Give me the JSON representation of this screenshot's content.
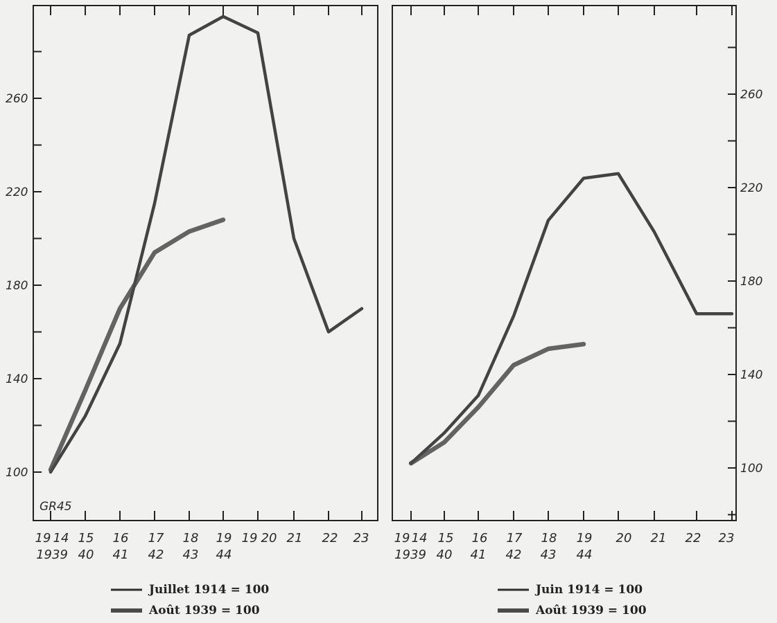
{
  "annotation": "GR45",
  "chart_data": [
    {
      "type": "line",
      "y_ticks": [
        100,
        140,
        180,
        220,
        260
      ],
      "x_tick_labels_top": [
        "19",
        "14",
        "15",
        "16",
        "17",
        "18",
        "19",
        "19",
        "20",
        "21",
        "22",
        "23"
      ],
      "x_tick_labels_bottom": [
        "1939",
        "40",
        "41",
        "42",
        "43",
        "44"
      ],
      "series": [
        {
          "name": "Juillet 1914 = 100",
          "x": [
            0,
            1,
            2,
            3,
            4,
            5,
            6,
            7,
            8,
            9
          ],
          "values": [
            100,
            124,
            155,
            215,
            287,
            295,
            288,
            200,
            160,
            170
          ]
        },
        {
          "name": "Août 1939 = 100",
          "x": [
            0,
            1,
            2,
            3,
            4,
            5
          ],
          "values": [
            101,
            135,
            170,
            194,
            203,
            208
          ]
        }
      ],
      "legend": [
        "Juillet 1914 = 100",
        "Août 1939 = 100"
      ]
    },
    {
      "type": "line",
      "y_ticks": [
        100,
        140,
        180,
        220,
        260
      ],
      "x_tick_labels_top": [
        "19",
        "14",
        "15",
        "16",
        "17",
        "18",
        "19",
        "20",
        "21",
        "22",
        "23"
      ],
      "x_tick_labels_bottom": [
        "1939",
        "40",
        "41",
        "42",
        "43",
        "44"
      ],
      "series": [
        {
          "name": "Juin 1914 = 100",
          "x": [
            0,
            1,
            2,
            3,
            4,
            5,
            6,
            7,
            8,
            9
          ],
          "values": [
            102,
            115,
            131,
            165,
            206,
            224,
            226,
            201,
            166,
            166
          ]
        },
        {
          "name": "Août 1939 = 100",
          "x": [
            0,
            1,
            2,
            3,
            4,
            5
          ],
          "values": [
            102,
            111,
            126,
            144,
            151,
            153
          ]
        }
      ],
      "legend": [
        "Juin 1914 = 100",
        "Août 1939 = 100"
      ]
    }
  ]
}
